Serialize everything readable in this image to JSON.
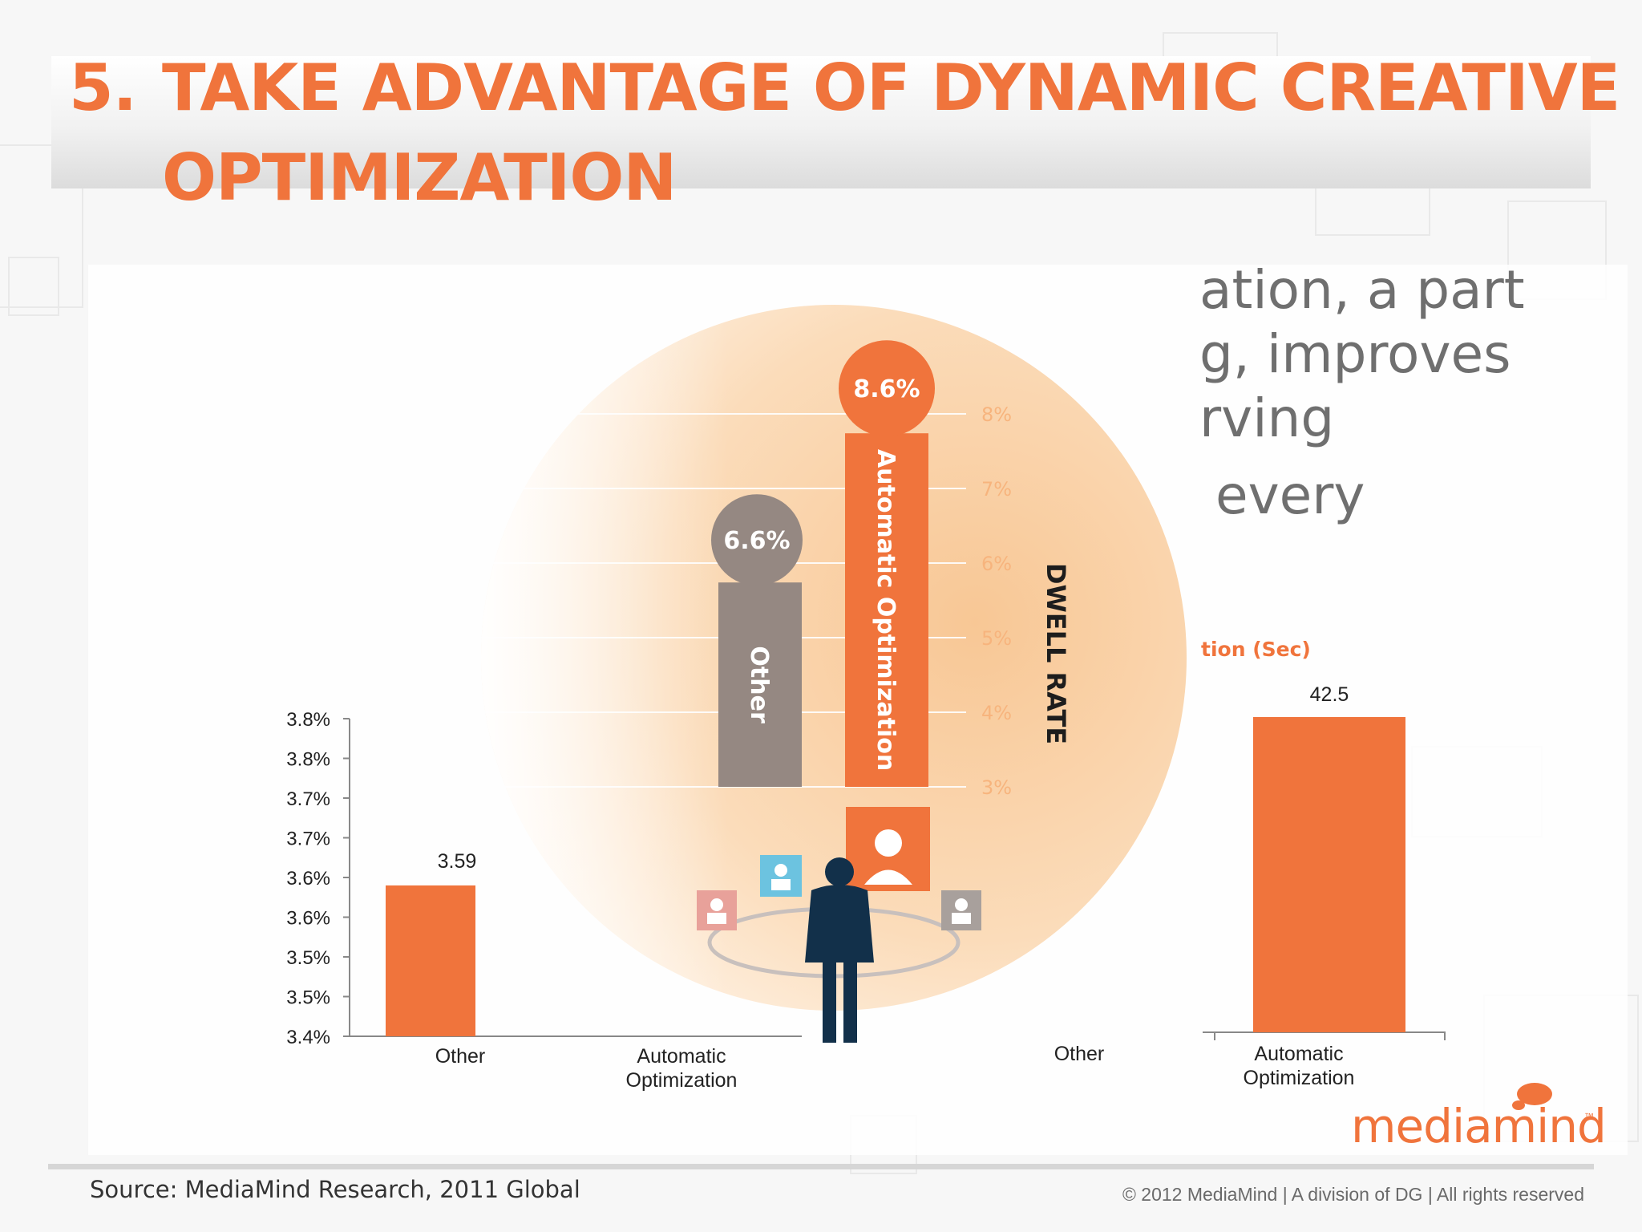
{
  "slide": {
    "title_number": "5.",
    "title_line1": "TAKE ADVANTAGE OF DYNAMIC CREATIVE",
    "title_line2": "OPTIMIZATION",
    "body_lines": [
      "ation, a part",
      "g, improves",
      "rving",
      "every"
    ],
    "source": "Source: MediaMind Research, 2011 Global",
    "copyright": "© 2012 MediaMind | A division of DG | All rights reserved",
    "logo": "mediamind",
    "logo_tm": "™"
  },
  "colors": {
    "accent": "#f0743c",
    "bar_other": "#958882",
    "figure_navy": "#12304a"
  },
  "icons": [
    "person-icon",
    "person-figure-icon",
    "mediamind-logo-icon"
  ],
  "chart_data": [
    {
      "type": "bar",
      "ylabel": "DWELL RATE",
      "ylim": [
        3,
        8.6
      ],
      "ytick_values": [
        3,
        4,
        5,
        6,
        7,
        8
      ],
      "yticks": [
        "3%",
        "4%",
        "5%",
        "6%",
        "7%",
        "8%"
      ],
      "categories": [
        "Other",
        "Automatic Optimization"
      ],
      "values": [
        6.6,
        8.6
      ],
      "value_labels": [
        "6.6%",
        "8.6%"
      ],
      "grid": true
    },
    {
      "type": "bar",
      "ylim": [
        3.4,
        3.8
      ],
      "ytick_values": [
        3.4,
        3.45,
        3.5,
        3.55,
        3.6,
        3.65,
        3.7,
        3.75,
        3.8
      ],
      "yticks": [
        "3.4%",
        "3.5%",
        "3.5%",
        "3.6%",
        "3.6%",
        "3.7%",
        "3.7%",
        "3.8%",
        "3.8%"
      ],
      "categories": [
        "Other",
        "Automatic Optimization"
      ],
      "values": [
        3.59,
        null
      ],
      "value_labels": [
        "3.59",
        ""
      ]
    },
    {
      "type": "bar",
      "title": "tion (Sec)",
      "categories": [
        "Other",
        "Automatic Optimization"
      ],
      "values": [
        null,
        42.5
      ],
      "value_labels": [
        "",
        "42.5"
      ]
    }
  ]
}
